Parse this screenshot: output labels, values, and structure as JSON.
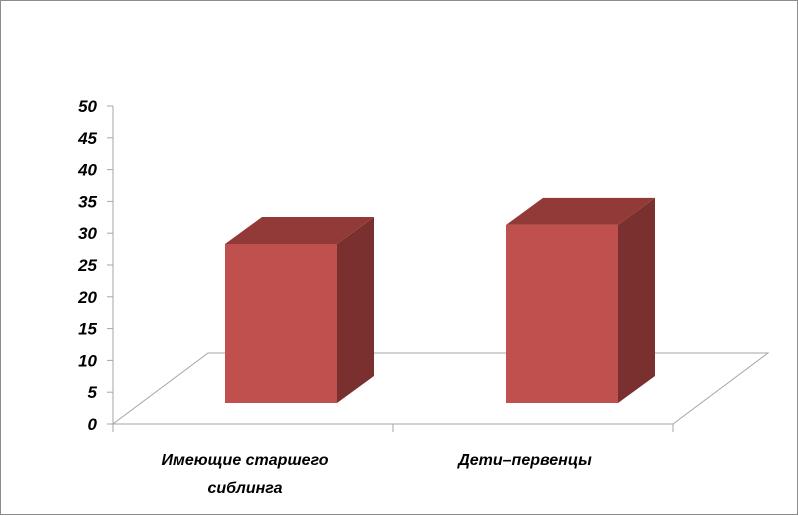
{
  "chart_data": {
    "type": "bar",
    "style": "3d-column",
    "categories": [
      "Имеющие старшего сиблинга",
      "Дети–первенцы"
    ],
    "category_label_lines": [
      [
        "Имеющие старшего",
        "сиблинга"
      ],
      [
        "Дети–первенцы"
      ]
    ],
    "values": [
      25,
      28
    ],
    "ylim": [
      0,
      50
    ],
    "yticks": [
      0,
      5,
      10,
      15,
      20,
      25,
      30,
      35,
      40,
      45,
      50
    ],
    "grid": false,
    "legend": "none",
    "title": "",
    "xlabel": "",
    "ylabel": "",
    "colors": {
      "front": "#c0504d",
      "top": "#923a37",
      "side": "#7a302e",
      "floor_line": "#a6a6a6",
      "axis": "#a6a6a6"
    }
  }
}
